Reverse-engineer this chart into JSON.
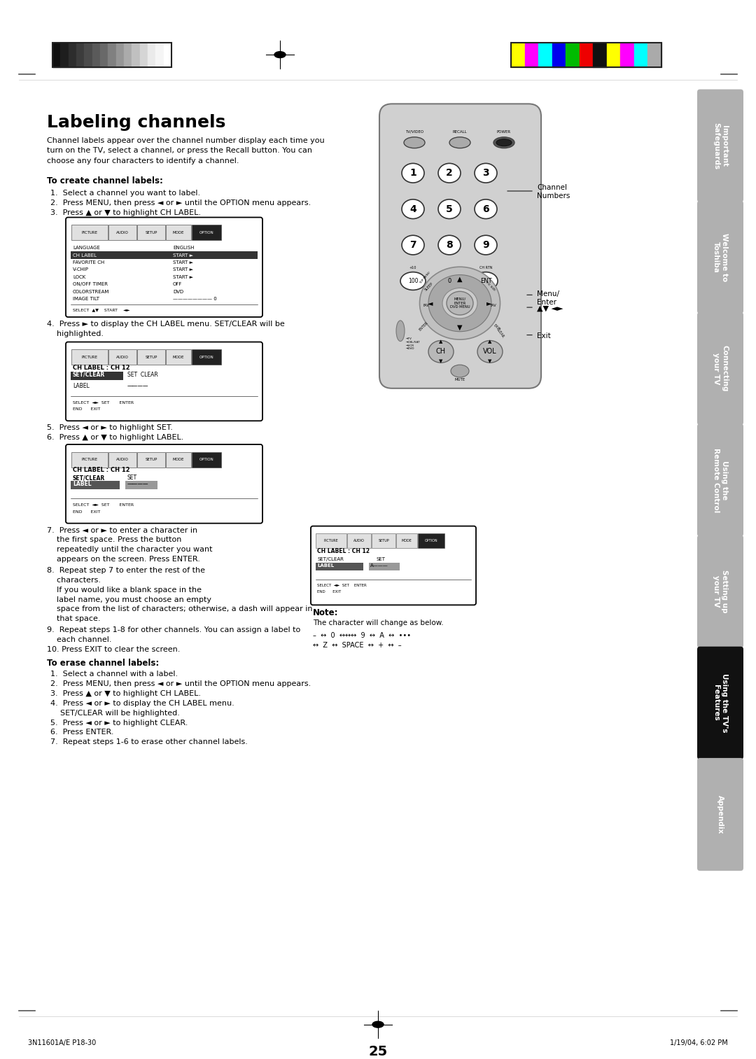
{
  "page_bg": "#ffffff",
  "title": "Labeling channels",
  "page_number": "25",
  "footer_left": "3N11601A/E P18-30",
  "footer_center": "25",
  "footer_right": "1/19/04, 6:02 PM",
  "grayscale_bars": [
    "#111111",
    "#1e1e1e",
    "#2d2d2d",
    "#3c3c3c",
    "#4b4b4b",
    "#5a5a5a",
    "#696969",
    "#808080",
    "#969696",
    "#ababab",
    "#c0c0c0",
    "#d5d5d5",
    "#eaeaea",
    "#f5f5f5",
    "#ffffff"
  ],
  "color_bars": [
    "#ffff00",
    "#ff00ff",
    "#00ffff",
    "#0000ee",
    "#00bb00",
    "#ee0000",
    "#111111",
    "#ffff00",
    "#ff00ff",
    "#00ffff",
    "#aaaaaa"
  ],
  "side_tabs": [
    {
      "label": "Important\nSafeguards"
    },
    {
      "label": "Welcome to\nToshiba"
    },
    {
      "label": "Connecting\nyour TV"
    },
    {
      "label": "Using the\nRemote Control"
    },
    {
      "label": "Setting up\nyour TV"
    },
    {
      "label": "Using the TV's\nFeatures"
    },
    {
      "label": "Appendix"
    }
  ],
  "active_tab": 5,
  "intro_text": "Channel labels appear over the channel number display each time you\nturn on the TV, select a channel, or press the Recall button. You can\nchoose any four characters to identify a channel.",
  "section1_title": "To create channel labels:",
  "section1_steps": [
    "1.  Select a channel you want to label.",
    "2.  Press MENU, then press ◄ or ► until the OPTION menu appears.",
    "3.  Press ▲ or ▼ to highlight CH LABEL."
  ],
  "step4_text": "4.  Press ► to display the CH LABEL menu. SET/CLEAR will be\n    highlighted.",
  "step56_text": "5.  Press ◄ or ► to highlight SET.\n6.  Press ▲ or ▼ to highlight LABEL.",
  "step7_lines": [
    "7.  Press ◄ or ► to enter a character in",
    "    the first space. Press the button",
    "    repeatedly until the character you want",
    "    appears on the screen. Press ENTER."
  ],
  "step8_lines": [
    "8.  Repeat step 7 to enter the rest of the",
    "    characters.",
    "    If you would like a blank space in the",
    "    label name, you must choose an empty",
    "    space from the list of characters; otherwise, a dash will appear in",
    "    that space."
  ],
  "step9_10_lines": [
    "9.  Repeat steps 1-8 for other channels. You can assign a label to",
    "    each channel.",
    "10. Press EXIT to clear the screen."
  ],
  "section2_title": "To erase channel labels:",
  "section2_steps": [
    "1.  Select a channel with a label.",
    "2.  Press MENU, then press ◄ or ► until the OPTION menu appears.",
    "3.  Press ▲ or ▼ to highlight CH LABEL.",
    "4.  Press ◄ or ► to display the CH LABEL menu.",
    "    SET/CLEAR will be highlighted.",
    "5.  Press ◄ or ► to highlight CLEAR.",
    "6.  Press ENTER.",
    "7.  Repeat steps 1-6 to erase other channel labels."
  ],
  "note_title": "Note:",
  "note_text": "The character will change as below."
}
